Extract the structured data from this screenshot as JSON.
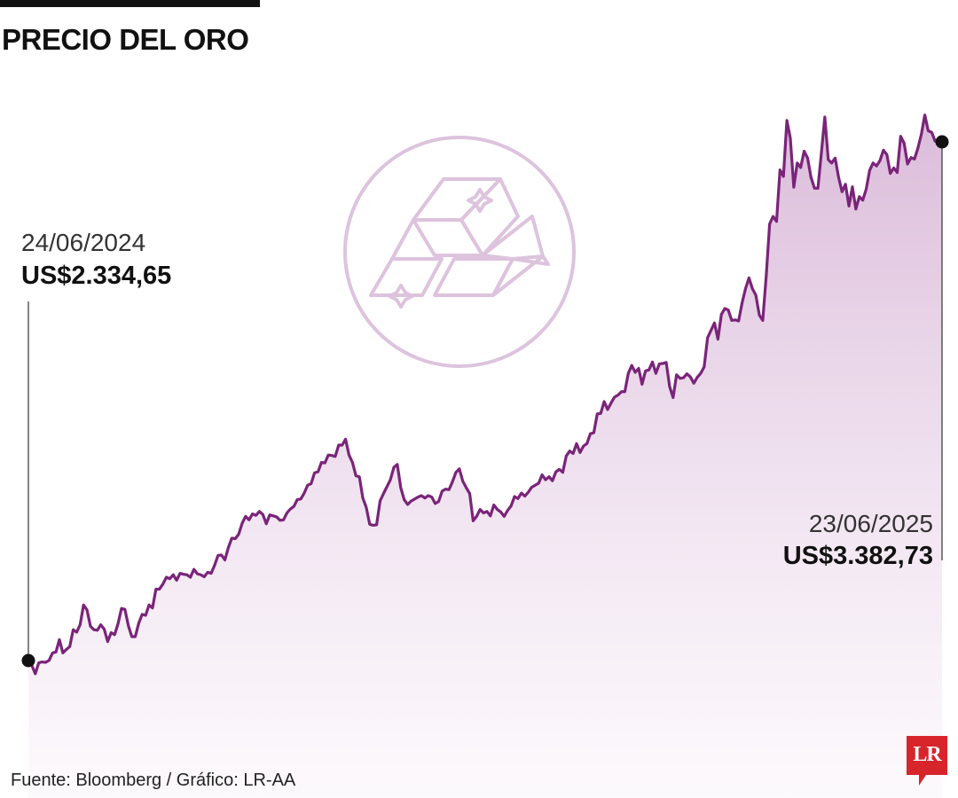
{
  "title": "PRECIO DEL ORO",
  "source": "Fuente: Bloomberg / Gráfico: LR-AA",
  "logo_text": "LR",
  "icon": "gold-bars-icon",
  "colors": {
    "line": "#7a2479",
    "area_top": "#d9b8d8",
    "area_bottom": "#fbf6fb",
    "icon": "#ddc3dd",
    "logo": "#d6262b",
    "text": "#111111"
  },
  "annotations": {
    "start": {
      "date": "24/06/2024",
      "value": "US$2.334,65"
    },
    "end": {
      "date": "23/06/2025",
      "value": "US$3.382,73"
    }
  },
  "chart_data": {
    "type": "area",
    "title": "PRECIO DEL ORO",
    "xlabel": "",
    "ylabel": "",
    "x_start": "24/06/2024",
    "x_end": "23/06/2025",
    "grid": false,
    "ylim": [
      2280,
      3520
    ],
    "series": [
      {
        "values": [
          2334.65,
          2325,
          2308,
          2330,
          2332,
          2331,
          2335,
          2350,
          2352,
          2377,
          2350,
          2357,
          2363,
          2397,
          2392,
          2407,
          2447,
          2437,
          2404,
          2397,
          2396,
          2407,
          2398,
          2373,
          2391,
          2387,
          2409,
          2440,
          2438,
          2405,
          2383,
          2383,
          2410,
          2428,
          2426,
          2447,
          2441,
          2479,
          2479,
          2489,
          2503,
          2500,
          2508,
          2497,
          2511,
          2509,
          2508,
          2503,
          2519,
          2510,
          2508,
          2504,
          2513,
          2511,
          2527,
          2547,
          2548,
          2538,
          2563,
          2582,
          2581,
          2590,
          2612,
          2626,
          2619,
          2631,
          2628,
          2636,
          2630,
          2611,
          2629,
          2627,
          2625,
          2618,
          2619,
          2633,
          2641,
          2646,
          2660,
          2661,
          2673,
          2689,
          2692,
          2714,
          2716,
          2735,
          2734,
          2750,
          2749,
          2747,
          2770,
          2770,
          2782,
          2750,
          2735,
          2708,
          2706,
          2663,
          2644,
          2610,
          2608,
          2609,
          2657,
          2672,
          2686,
          2700,
          2725,
          2731,
          2684,
          2660,
          2650,
          2657,
          2661,
          2665,
          2668,
          2663,
          2668,
          2665,
          2652,
          2656,
          2677,
          2681,
          2680,
          2696,
          2715,
          2722,
          2697,
          2684,
          2672,
          2617,
          2626,
          2640,
          2633,
          2636,
          2627,
          2649,
          2640,
          2635,
          2626,
          2638,
          2647,
          2666,
          2662,
          2673,
          2667,
          2675,
          2685,
          2689,
          2693,
          2710,
          2700,
          2706,
          2698,
          2716,
          2721,
          2715,
          2748,
          2758,
          2753,
          2773,
          2755,
          2768,
          2773,
          2793,
          2795,
          2833,
          2834,
          2858,
          2842,
          2855,
          2867,
          2871,
          2878,
          2878,
          2915,
          2931,
          2917,
          2925,
          2893,
          2920,
          2922,
          2938,
          2915,
          2934,
          2935,
          2937,
          2888,
          2866,
          2912,
          2905,
          2906,
          2914,
          2908,
          2895,
          2907,
          2915,
          2928,
          2987,
          3002,
          3017,
          2984,
          3034,
          3046,
          3043,
          3022,
          3023,
          3021,
          3057,
          3086,
          3108,
          3086,
          3073,
          3033,
          3022,
          3111,
          3217,
          3232,
          3222,
          3326,
          3313,
          3426,
          3390,
          3291,
          3340,
          3331,
          3364,
          3350,
          3311,
          3289,
          3289,
          3360,
          3433,
          3347,
          3340,
          3350,
          3311,
          3282,
          3297,
          3253,
          3292,
          3247,
          3272,
          3265,
          3287,
          3325,
          3340,
          3334,
          3345,
          3366,
          3357,
          3319,
          3330,
          3321,
          3394,
          3380,
          3338,
          3351,
          3348,
          3370,
          3398,
          3437,
          3405,
          3402,
          3384,
          3384,
          3382.73
        ]
      }
    ]
  }
}
